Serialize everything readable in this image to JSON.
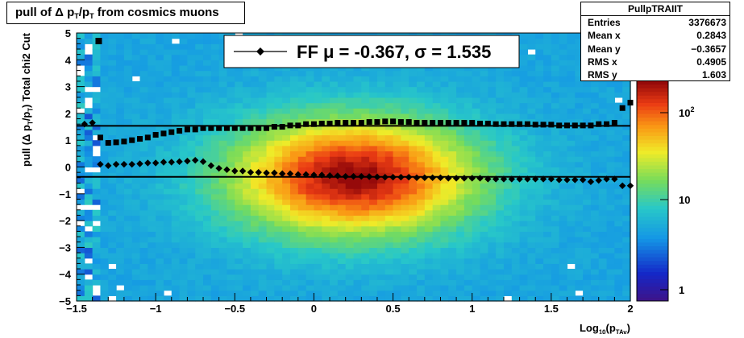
{
  "title": {
    "main": "pull of Δ p",
    "sub1": "T",
    "mid": "/p",
    "sub2": "T",
    "rest": " from cosmics muons"
  },
  "stats": {
    "name": "PullpTRAIIT",
    "rows": [
      {
        "label": "Entries",
        "value": "3376673"
      },
      {
        "label": "Mean x",
        "value": "0.2843"
      },
      {
        "label": "Mean y",
        "value": "−0.3657"
      },
      {
        "label": "RMS x",
        "value": "0.4905"
      },
      {
        "label": "RMS y",
        "value": "1.603"
      }
    ]
  },
  "legend": {
    "text": "FF μ = -0.367, σ =   1.535"
  },
  "colors": {
    "fit_line": "#000000",
    "markers": "#000000"
  },
  "chart_data": {
    "type": "heatmap",
    "xlabel": "Log",
    "xlabel_sub": "10",
    "xlabel_rest": "(p",
    "xlabel_sub2": "TAv",
    "xlabel_close": ")",
    "ylabel": "pull (Δ p",
    "ylabel_sub1": "T",
    "ylabel_mid": "/p",
    "ylabel_sub2": "T",
    "ylabel_rest": ")  Total chi2 Cut",
    "xlim": [
      -1.5,
      2
    ],
    "ylim": [
      -5,
      5
    ],
    "x_ticks": [
      "−1.5",
      "−1",
      "−0.5",
      "0",
      "0.5",
      "1",
      "1.5",
      "2"
    ],
    "y_ticks": [
      "−5",
      "−4",
      "−3",
      "−2",
      "−1",
      "0",
      "1",
      "2",
      "3",
      "4",
      "5"
    ],
    "z_scale": "log",
    "z_ticks": [
      "1",
      "10",
      "10^2"
    ],
    "fit_mean_line": -0.367,
    "fit_sigma_line": 1.535,
    "mean_points": {
      "x": [
        -1.45,
        -1.4,
        -1.35,
        -1.3,
        -1.25,
        -1.2,
        -1.15,
        -1.1,
        -1.05,
        -1.0,
        -0.95,
        -0.9,
        -0.85,
        -0.8,
        -0.75,
        -0.7,
        -0.65,
        -0.6,
        -0.55,
        -0.5,
        -0.45,
        -0.4,
        -0.35,
        -0.3,
        -0.25,
        -0.2,
        -0.15,
        -0.1,
        -0.05,
        0.0,
        0.05,
        0.1,
        0.15,
        0.2,
        0.25,
        0.3,
        0.35,
        0.4,
        0.45,
        0.5,
        0.55,
        0.6,
        0.65,
        0.7,
        0.75,
        0.8,
        0.85,
        0.9,
        0.95,
        1.0,
        1.05,
        1.1,
        1.15,
        1.2,
        1.25,
        1.3,
        1.35,
        1.4,
        1.45,
        1.5,
        1.55,
        1.6,
        1.65,
        1.7,
        1.75,
        1.8,
        1.85,
        1.9,
        1.95,
        2.0
      ],
      "y": [
        1.6,
        1.65,
        0.1,
        0.05,
        0.1,
        0.1,
        0.1,
        0.12,
        0.15,
        0.15,
        0.18,
        0.18,
        0.2,
        0.22,
        0.25,
        0.2,
        0.05,
        -0.05,
        -0.1,
        -0.15,
        -0.15,
        -0.2,
        -0.2,
        -0.22,
        -0.22,
        -0.25,
        -0.25,
        -0.28,
        -0.28,
        -0.3,
        -0.3,
        -0.32,
        -0.33,
        -0.35,
        -0.35,
        -0.35,
        -0.36,
        -0.37,
        -0.38,
        -0.38,
        -0.38,
        -0.38,
        -0.4,
        -0.4,
        -0.4,
        -0.4,
        -0.42,
        -0.42,
        -0.42,
        -0.42,
        -0.42,
        -0.45,
        -0.45,
        -0.45,
        -0.45,
        -0.45,
        -0.45,
        -0.45,
        -0.45,
        -0.45,
        -0.48,
        -0.48,
        -0.48,
        -0.48,
        -0.55,
        -0.5,
        -0.45,
        -0.45,
        -0.7,
        -0.7
      ]
    },
    "rms_points": {
      "x": [
        -1.35,
        -1.3,
        -1.25,
        -1.2,
        -1.15,
        -1.1,
        -1.05,
        -1.0,
        -0.95,
        -0.9,
        -0.85,
        -0.8,
        -0.75,
        -0.7,
        -0.65,
        -0.6,
        -0.55,
        -0.5,
        -0.45,
        -0.4,
        -0.35,
        -0.3,
        -0.25,
        -0.2,
        -0.15,
        -0.1,
        -0.05,
        0.0,
        0.05,
        0.1,
        0.15,
        0.2,
        0.25,
        0.3,
        0.35,
        0.4,
        0.45,
        0.5,
        0.55,
        0.6,
        0.65,
        0.7,
        0.75,
        0.8,
        0.85,
        0.9,
        0.95,
        1.0,
        1.05,
        1.1,
        1.15,
        1.2,
        1.25,
        1.3,
        1.35,
        1.4,
        1.45,
        1.5,
        1.55,
        1.6,
        1.65,
        1.7,
        1.75,
        1.8,
        1.85,
        1.9,
        1.95,
        2.0
      ],
      "y": [
        1.1,
        0.9,
        0.92,
        0.95,
        1.0,
        1.05,
        1.1,
        1.2,
        1.25,
        1.3,
        1.35,
        1.4,
        1.4,
        1.45,
        1.45,
        1.45,
        1.45,
        1.45,
        1.45,
        1.45,
        1.45,
        1.45,
        1.5,
        1.5,
        1.55,
        1.55,
        1.6,
        1.6,
        1.62,
        1.62,
        1.65,
        1.65,
        1.65,
        1.65,
        1.68,
        1.68,
        1.7,
        1.7,
        1.68,
        1.68,
        1.65,
        1.65,
        1.65,
        1.65,
        1.65,
        1.65,
        1.65,
        1.65,
        1.62,
        1.62,
        1.6,
        1.6,
        1.6,
        1.6,
        1.6,
        1.58,
        1.58,
        1.58,
        1.55,
        1.55,
        1.55,
        1.55,
        1.55,
        1.6,
        1.6,
        1.65,
        2.2,
        2.4
      ],
      "outlier": {
        "x": -1.36,
        "y": 4.7
      }
    }
  }
}
